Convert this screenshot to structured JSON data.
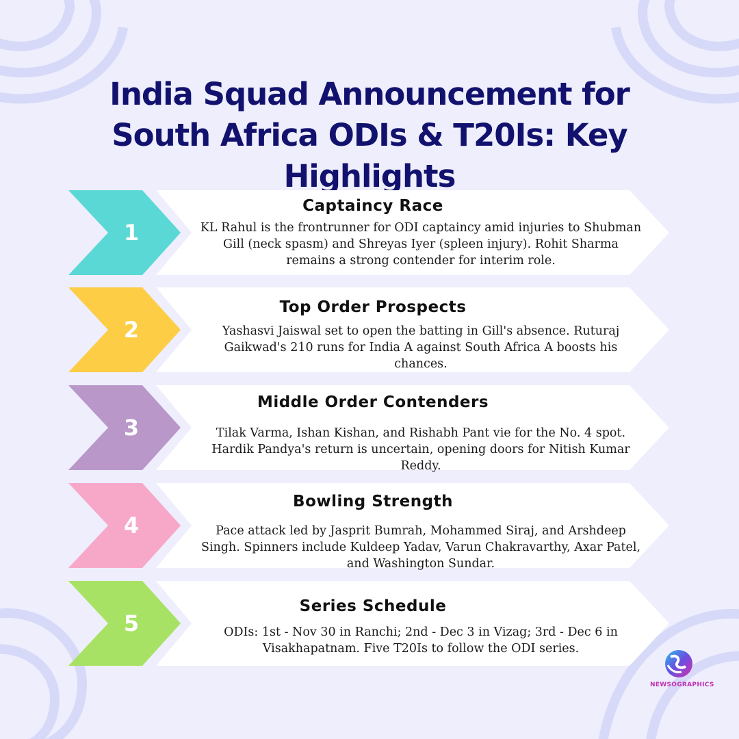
{
  "title": "India Squad Announcement for South Africa ODIs & T20Is: Key Highlights",
  "items": [
    {
      "number": "1",
      "heading": "Captaincy Race",
      "text": "KL Rahul is the frontrunner for ODI captaincy amid injuries to Shubman Gill (neck spasm) and Shreyas Iyer (spleen injury). Rohit Sharma remains a strong contender for interim role.",
      "color": "#5ad8d6"
    },
    {
      "number": "2",
      "heading": "Top Order Prospects",
      "text": "Yashasvi Jaiswal set to open the batting in Gill's absence. Ruturaj Gaikwad's 210 runs for India A against South Africa A boosts his chances.",
      "color": "#fdcd45"
    },
    {
      "number": "3",
      "heading": "Middle Order Contenders",
      "text": "Tilak Varma, Ishan Kishan, and Rishabh Pant vie for the No. 4 spot. Hardik Pandya's return is uncertain, opening doors for Nitish Kumar Reddy.",
      "color": "#b997c9"
    },
    {
      "number": "4",
      "heading": "Bowling Strength",
      "text": "Pace attack led by Jasprit Bumrah, Mohammed Siraj, and Arshdeep Singh. Spinners include Kuldeep Yadav, Varun Chakravarthy, Axar Patel, and Washington Sundar.",
      "color": "#f7a8c8"
    },
    {
      "number": "5",
      "heading": "Series Schedule",
      "text": "ODIs: 1st - Nov 30 in Ranchi; 2nd - Dec 3 in Vizag; 3rd - Dec 6 in Visakhapatnam. Five T20Is to follow the ODI series.",
      "color": "#a7e264"
    }
  ],
  "logo": {
    "text": "NEWSOGRAPHICS",
    "icon": "globe-logo-icon"
  }
}
